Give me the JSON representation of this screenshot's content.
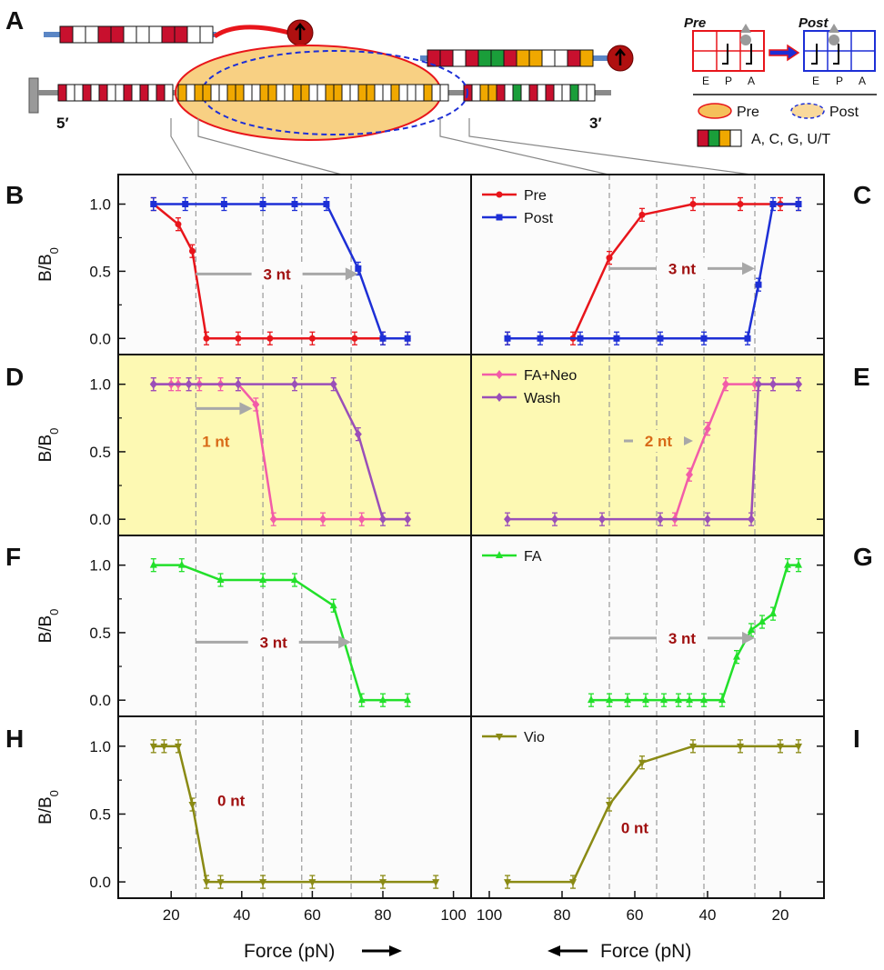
{
  "figure": {
    "panel_labels": {
      "A": "A",
      "B": "B",
      "C": "C",
      "D": "D",
      "E": "E",
      "F": "F",
      "G": "G",
      "H": "H",
      "I": "I"
    },
    "ylabel_main": "B/B",
    "ylabel_sub": "0",
    "xlabel_left": "Force (pN)",
    "xlabel_right": "Force (pN)",
    "yticks": [
      "0.0",
      "0.5",
      "1.0"
    ],
    "xticks_left": [
      "20",
      "40",
      "60",
      "80",
      "100"
    ],
    "xticks_right": [
      "100",
      "80",
      "60",
      "40",
      "20"
    ]
  },
  "schematic": {
    "five_prime": "5′",
    "three_prime": "3′",
    "pre_title": "Pre",
    "post_title": "Post",
    "sites": [
      "E",
      "P",
      "A"
    ],
    "legend_pre": "Pre",
    "legend_post": "Post",
    "legend_bases": "A, C, G, U/T",
    "colors": {
      "A": "#c8102e",
      "C": "#1a9e3a",
      "G": "#f0a800",
      "U": "#ffffff"
    }
  },
  "chart_data": [
    {
      "panel": "B",
      "type": "line",
      "ylim": [
        -0.12,
        1.22
      ],
      "xlim": [
        5,
        105
      ],
      "x_direction": "increasing",
      "ylabel": "B/B0",
      "xlabel": "Force (pN)",
      "shift_label": "3 nt",
      "series": [
        {
          "name": "Pre",
          "color": "#e8151b",
          "marker": "circle",
          "x": [
            15,
            22,
            26,
            30,
            39,
            48,
            60,
            72,
            80,
            87
          ],
          "y": [
            1.0,
            0.85,
            0.65,
            0.0,
            0.0,
            0.0,
            0.0,
            0.0,
            0.0,
            0.0
          ]
        },
        {
          "name": "Post",
          "color": "#1d2fd6",
          "marker": "square",
          "x": [
            15,
            24,
            35,
            46,
            55,
            64,
            73,
            80,
            87
          ],
          "y": [
            1.0,
            1.0,
            1.0,
            1.0,
            1.0,
            1.0,
            0.52,
            0.0,
            0.0
          ]
        }
      ]
    },
    {
      "panel": "C",
      "type": "line",
      "ylim": [
        -0.12,
        1.22
      ],
      "xlim": [
        105,
        8
      ],
      "x_direction": "decreasing",
      "ylabel": "B/B0",
      "xlabel": "Force (pN)",
      "shift_label": "3 nt",
      "legend": [
        "Pre",
        "Post"
      ],
      "series": [
        {
          "name": "Pre",
          "color": "#e8151b",
          "marker": "circle",
          "x": [
            95,
            77,
            67,
            58,
            44,
            31,
            20,
            15
          ],
          "y": [
            0.0,
            0.0,
            0.6,
            0.92,
            1.0,
            1.0,
            1.0,
            1.0
          ]
        },
        {
          "name": "Post",
          "color": "#1d2fd6",
          "marker": "square",
          "x": [
            95,
            86,
            75,
            65,
            53,
            41,
            29,
            26,
            22,
            15
          ],
          "y": [
            0.0,
            0.0,
            0.0,
            0.0,
            0.0,
            0.0,
            0.0,
            0.4,
            1.0,
            1.0
          ]
        }
      ]
    },
    {
      "panel": "D",
      "type": "line",
      "ylim": [
        -0.12,
        1.22
      ],
      "xlim": [
        5,
        105
      ],
      "x_direction": "increasing",
      "ylabel": "B/B0",
      "xlabel": "Force (pN)",
      "shift_label": "1 nt",
      "highlight": true,
      "series": [
        {
          "name": "FA+Neo",
          "color": "#f25ca8",
          "marker": "diamond",
          "x": [
            15,
            20,
            22,
            25,
            28,
            34,
            39,
            44,
            49,
            63,
            74,
            87
          ],
          "y": [
            1.0,
            1.0,
            1.0,
            1.0,
            1.0,
            1.0,
            1.0,
            0.85,
            0.0,
            0.0,
            0.0,
            0.0
          ]
        },
        {
          "name": "Wash",
          "color": "#9a4fb8",
          "marker": "diamond",
          "x": [
            15,
            25,
            39,
            55,
            66,
            73,
            80,
            87
          ],
          "y": [
            1.0,
            1.0,
            1.0,
            1.0,
            1.0,
            0.63,
            0.0,
            0.0
          ]
        }
      ]
    },
    {
      "panel": "E",
      "type": "line",
      "ylim": [
        -0.12,
        1.22
      ],
      "xlim": [
        105,
        8
      ],
      "x_direction": "decreasing",
      "ylabel": "B/B0",
      "xlabel": "Force (pN)",
      "shift_label": "2 nt",
      "highlight": true,
      "legend": [
        "FA+Neo",
        "Wash"
      ],
      "series": [
        {
          "name": "FA+Neo",
          "color": "#f25ca8",
          "marker": "diamond",
          "x": [
            49,
            45,
            40,
            35,
            27,
            22,
            15
          ],
          "y": [
            0.0,
            0.33,
            0.67,
            1.0,
            1.0,
            1.0,
            1.0
          ]
        },
        {
          "name": "Wash",
          "color": "#9a4fb8",
          "marker": "diamond",
          "x": [
            95,
            82,
            69,
            53,
            40,
            28,
            26,
            22,
            15
          ],
          "y": [
            0.0,
            0.0,
            0.0,
            0.0,
            0.0,
            0.0,
            1.0,
            1.0,
            1.0
          ]
        }
      ]
    },
    {
      "panel": "F",
      "type": "line",
      "ylim": [
        -0.12,
        1.22
      ],
      "xlim": [
        5,
        105
      ],
      "x_direction": "increasing",
      "ylabel": "B/B0",
      "xlabel": "Force (pN)",
      "shift_label": "3 nt",
      "series": [
        {
          "name": "FA",
          "color": "#22e02a",
          "marker": "triangle-up",
          "x": [
            15,
            23,
            34,
            46,
            55,
            66,
            74,
            80,
            87
          ],
          "y": [
            1.0,
            1.0,
            0.89,
            0.89,
            0.89,
            0.7,
            0.0,
            0.0,
            0.0
          ]
        }
      ]
    },
    {
      "panel": "G",
      "type": "line",
      "ylim": [
        -0.12,
        1.22
      ],
      "xlim": [
        105,
        8
      ],
      "x_direction": "decreasing",
      "ylabel": "B/B0",
      "xlabel": "Force (pN)",
      "shift_label": "3 nt",
      "legend": [
        "FA"
      ],
      "series": [
        {
          "name": "FA",
          "color": "#22e02a",
          "marker": "triangle-up",
          "x": [
            72,
            67,
            62,
            57,
            52,
            48,
            45,
            41,
            36,
            32,
            28,
            25,
            22,
            18,
            15
          ],
          "y": [
            0.0,
            0.0,
            0.0,
            0.0,
            0.0,
            0.0,
            0.0,
            0.0,
            0.0,
            0.32,
            0.52,
            0.58,
            0.64,
            1.0,
            1.0
          ]
        }
      ]
    },
    {
      "panel": "H",
      "type": "line",
      "ylim": [
        -0.12,
        1.22
      ],
      "xlim": [
        5,
        105
      ],
      "x_direction": "increasing",
      "ylabel": "B/B0",
      "xlabel": "Force (pN)",
      "shift_label": "0 nt",
      "series": [
        {
          "name": "Vio",
          "color": "#8a8a14",
          "marker": "triangle-down",
          "x": [
            15,
            18,
            22,
            26,
            30,
            34,
            46,
            60,
            80,
            95
          ],
          "y": [
            1.0,
            1.0,
            1.0,
            0.57,
            0.0,
            0.0,
            0.0,
            0.0,
            0.0,
            0.0
          ]
        }
      ]
    },
    {
      "panel": "I",
      "type": "line",
      "ylim": [
        -0.12,
        1.22
      ],
      "xlim": [
        105,
        8
      ],
      "x_direction": "decreasing",
      "ylabel": "B/B0",
      "xlabel": "Force (pN)",
      "shift_label": "0 nt",
      "legend": [
        "Vio"
      ],
      "series": [
        {
          "name": "Vio",
          "color": "#8a8a14",
          "marker": "triangle-down",
          "x": [
            95,
            77,
            67,
            58,
            44,
            31,
            20,
            15
          ],
          "y": [
            0.0,
            0.0,
            0.57,
            0.88,
            1.0,
            1.0,
            1.0,
            1.0
          ]
        }
      ]
    }
  ]
}
